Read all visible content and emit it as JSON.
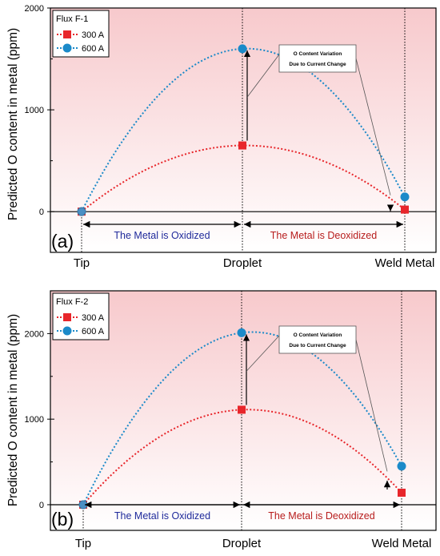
{
  "chart_data": [
    {
      "type": "line",
      "panel_label": "(a)",
      "ylabel": "Predicted O content in metal (ppm)",
      "ylim": [
        -400,
        2000
      ],
      "y_ticks": [
        0,
        1000,
        2000
      ],
      "categories": [
        "Tip",
        "Droplet",
        "Weld Metal"
      ],
      "legend": {
        "title": "Flux F-1",
        "placement": "top-left"
      },
      "series": [
        {
          "name": "300 A",
          "color": "#e8262b",
          "marker": "square",
          "values": [
            0,
            650,
            20
          ]
        },
        {
          "name": "600 A",
          "color": "#1b8ac9",
          "marker": "circle",
          "values": [
            0,
            1600,
            145
          ]
        }
      ],
      "annotation": [
        "O Content Variation",
        "Due to Current Change"
      ],
      "regions": [
        {
          "label": "The Metal is Oxidized",
          "color": "#1f2a9b"
        },
        {
          "label": "The Metal is Deoxidized",
          "color": "#b71c1c"
        }
      ],
      "grid": false
    },
    {
      "type": "line",
      "panel_label": "(b)",
      "ylabel": "Predicted O content in metal (ppm)",
      "ylim": [
        -300,
        2500
      ],
      "y_ticks": [
        0,
        1000,
        2000
      ],
      "categories": [
        "Tip",
        "Droplet",
        "Weld Metal"
      ],
      "legend": {
        "title": "Flux F-2",
        "placement": "top-left"
      },
      "series": [
        {
          "name": "300 A",
          "color": "#e8262b",
          "marker": "square",
          "values": [
            0,
            1110,
            140
          ]
        },
        {
          "name": "600 A",
          "color": "#1b8ac9",
          "marker": "circle",
          "values": [
            0,
            2010,
            450
          ]
        }
      ],
      "annotation": [
        "O Content Variation",
        "Due to Current Change"
      ],
      "regions": [
        {
          "label": "The Metal is Oxidized",
          "color": "#1f2a9b"
        },
        {
          "label": "The Metal is Deoxidized",
          "color": "#b71c1c"
        }
      ],
      "grid": false
    }
  ]
}
